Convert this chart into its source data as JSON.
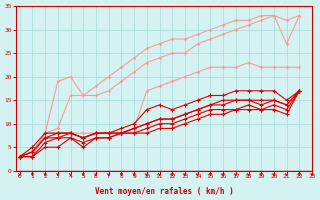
{
  "xlabel": "Vent moyen/en rafales ( km/h )",
  "background_color": "#d4f2f2",
  "grid_color": "#aadddd",
  "x_max": 23,
  "y_min": 0,
  "y_max": 35,
  "y_ticks": [
    0,
    5,
    10,
    15,
    20,
    25,
    30,
    35
  ],
  "x_ticks": [
    0,
    1,
    2,
    3,
    4,
    5,
    6,
    7,
    8,
    9,
    10,
    11,
    12,
    13,
    14,
    15,
    16,
    17,
    18,
    19,
    20,
    21,
    22,
    23
  ],
  "series_light": [
    [
      3,
      4,
      8,
      19,
      20,
      16,
      18,
      20,
      22,
      24,
      26,
      27,
      28,
      28,
      29,
      30,
      31,
      32,
      32,
      33,
      33,
      27,
      33
    ],
    [
      3,
      3,
      8,
      9,
      16,
      16,
      16,
      17,
      19,
      21,
      23,
      24,
      25,
      25,
      27,
      28,
      29,
      30,
      31,
      32,
      33,
      32,
      33
    ],
    [
      3,
      3,
      8,
      8,
      8,
      8,
      8,
      8,
      8,
      9,
      17,
      18,
      19,
      20,
      21,
      22,
      22,
      22,
      23,
      22,
      22,
      22,
      22
    ]
  ],
  "series_dark": [
    [
      3,
      5,
      8,
      8,
      8,
      7,
      8,
      8,
      9,
      10,
      13,
      14,
      13,
      14,
      15,
      16,
      16,
      17,
      17,
      17,
      17,
      15,
      17
    ],
    [
      3,
      4,
      7,
      8,
      8,
      7,
      8,
      8,
      8,
      9,
      10,
      11,
      11,
      12,
      13,
      14,
      15,
      15,
      15,
      15,
      15,
      14,
      17
    ],
    [
      3,
      4,
      7,
      7,
      8,
      7,
      8,
      8,
      8,
      9,
      10,
      11,
      11,
      12,
      13,
      14,
      14,
      15,
      15,
      14,
      15,
      14,
      17
    ],
    [
      3,
      3,
      6,
      7,
      7,
      6,
      7,
      7,
      8,
      8,
      9,
      10,
      10,
      11,
      12,
      13,
      13,
      13,
      14,
      13,
      14,
      13,
      17
    ],
    [
      3,
      3,
      5,
      5,
      7,
      5,
      7,
      7,
      8,
      8,
      8,
      9,
      9,
      10,
      11,
      12,
      12,
      13,
      13,
      13,
      13,
      12,
      17
    ]
  ],
  "light_color": "#ff9999",
  "dark_color": "#dd0000",
  "tick_color": "#cc0000",
  "spine_color": "#cc0000"
}
